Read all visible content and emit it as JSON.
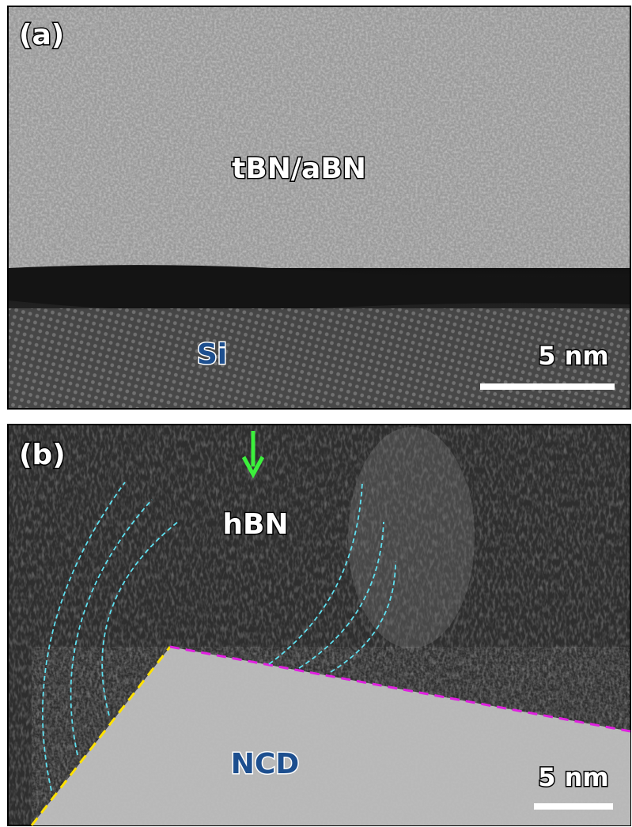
{
  "panels": [
    {
      "label": "(a)",
      "top_layer": "tBN/aBN",
      "substrate": "Si",
      "scale_bar": "5 nm"
    },
    {
      "label": "(b)",
      "top_layer": "hBN",
      "substrate": "NCD",
      "scale_bar": "5 nm"
    }
  ]
}
